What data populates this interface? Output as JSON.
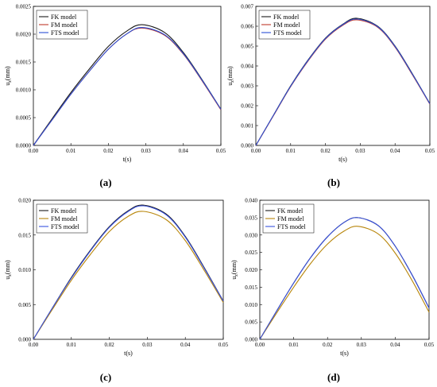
{
  "captions": [
    "(a)",
    "(b)",
    "(c)",
    "(d)"
  ],
  "chart_data": [
    {
      "type": "line",
      "xlabel": "t(s)",
      "ylabel": "u",
      "ylabel_sub": "z",
      "ylabel_unit": "(mm)",
      "xlim": [
        0,
        0.05
      ],
      "ylim": [
        0,
        0.0025
      ],
      "xticks": [
        "0.00",
        "0.01",
        "0.02",
        "0.03",
        "0.04",
        "0.05"
      ],
      "yticks": [
        "0.0000",
        "0.0005",
        "0.0010",
        "0.0015",
        "0.0020",
        "0.0025"
      ],
      "x": [
        0,
        0.005,
        0.01,
        0.015,
        0.02,
        0.025,
        0.029,
        0.035,
        0.04,
        0.045,
        0.05
      ],
      "series": [
        {
          "name": "FK model",
          "color": "#1a1a1a",
          "values": [
            0,
            0.00048,
            0.00095,
            0.00138,
            0.00178,
            0.00206,
            0.00217,
            0.00203,
            0.00167,
            0.00118,
            0.00065
          ]
        },
        {
          "name": "FM model",
          "color": "#c0392b",
          "values": [
            0,
            0.00046,
            0.00092,
            0.00134,
            0.00173,
            0.00201,
            0.00211,
            0.00198,
            0.00164,
            0.00116,
            0.00064
          ]
        },
        {
          "name": "FTS model",
          "color": "#2b4fd6",
          "values": [
            0,
            0.00046,
            0.00092,
            0.00134,
            0.00173,
            0.00201,
            0.00212,
            0.00199,
            0.00165,
            0.00117,
            0.00065
          ]
        }
      ]
    },
    {
      "type": "line",
      "xlabel": "t(s)",
      "ylabel": "u",
      "ylabel_sub": "z",
      "ylabel_unit": "(mm)",
      "xlim": [
        0,
        0.05
      ],
      "ylim": [
        0,
        0.007
      ],
      "xticks": [
        "0.00",
        "0.01",
        "0.02",
        "0.03",
        "0.04",
        "0.05"
      ],
      "yticks": [
        "0.000",
        "0.001",
        "0.002",
        "0.003",
        "0.004",
        "0.005",
        "0.006",
        "0.007"
      ],
      "x": [
        0,
        0.005,
        0.01,
        0.015,
        0.02,
        0.025,
        0.029,
        0.035,
        0.04,
        0.045,
        0.05
      ],
      "series": [
        {
          "name": "FK model",
          "color": "#1a1a1a",
          "values": [
            0,
            0.0015,
            0.003,
            0.0043,
            0.0054,
            0.0061,
            0.0064,
            0.006,
            0.005,
            0.0036,
            0.0021
          ]
        },
        {
          "name": "FM model",
          "color": "#c0392b",
          "values": [
            0,
            0.00148,
            0.00296,
            0.00425,
            0.00535,
            0.00605,
            0.00632,
            0.00595,
            0.00495,
            0.00355,
            0.00208
          ]
        },
        {
          "name": "FTS model",
          "color": "#2b4fd6",
          "values": [
            0,
            0.0015,
            0.00298,
            0.00428,
            0.00538,
            0.00608,
            0.00636,
            0.00598,
            0.00498,
            0.00358,
            0.0021
          ]
        }
      ]
    },
    {
      "type": "line",
      "xlabel": "t(s)",
      "ylabel": "u",
      "ylabel_sub": "z",
      "ylabel_unit": "(mm)",
      "xlim": [
        0,
        0.05
      ],
      "ylim": [
        0,
        0.02
      ],
      "xticks": [
        "0.00",
        "0.01",
        "0.02",
        "0.03",
        "0.04",
        "0.05"
      ],
      "yticks": [
        "0.000",
        "0.005",
        "0.010",
        "0.015",
        "0.020"
      ],
      "x": [
        0,
        0.005,
        0.01,
        0.015,
        0.02,
        0.025,
        0.029,
        0.035,
        0.04,
        0.045,
        0.05
      ],
      "series": [
        {
          "name": "FK model",
          "color": "#1a1a1a",
          "values": [
            0,
            0.0045,
            0.0089,
            0.0128,
            0.0162,
            0.0185,
            0.0193,
            0.018,
            0.0148,
            0.0103,
            0.0055
          ]
        },
        {
          "name": "FM model",
          "color": "#b8860b",
          "values": [
            0,
            0.0043,
            0.0085,
            0.0122,
            0.0155,
            0.0177,
            0.0184,
            0.0172,
            0.0142,
            0.0099,
            0.0053
          ]
        },
        {
          "name": "FTS model",
          "color": "#3a52e0",
          "values": [
            0,
            0.0045,
            0.0088,
            0.0127,
            0.0161,
            0.0184,
            0.0192,
            0.0179,
            0.0147,
            0.0102,
            0.0055
          ]
        }
      ]
    },
    {
      "type": "line",
      "xlabel": "t(s)",
      "ylabel": "u",
      "ylabel_sub": "z",
      "ylabel_unit": "(mm)",
      "xlim": [
        0,
        0.05
      ],
      "ylim": [
        0,
        0.04
      ],
      "xticks": [
        "0.00",
        "0.01",
        "0.02",
        "0.03",
        "0.04",
        "0.05"
      ],
      "yticks": [
        "0.000",
        "0.005",
        "0.010",
        "0.015",
        "0.020",
        "0.025",
        "0.030",
        "0.035",
        "0.040"
      ],
      "x": [
        0,
        0.005,
        0.01,
        0.015,
        0.02,
        0.025,
        0.029,
        0.035,
        0.04,
        0.045,
        0.05
      ],
      "series": [
        {
          "name": "FK model",
          "color": "#1a1a1a",
          "values": [
            0,
            0.0082,
            0.0162,
            0.0235,
            0.0295,
            0.0337,
            0.035,
            0.0327,
            0.0268,
            0.0185,
            0.009
          ]
        },
        {
          "name": "FM model",
          "color": "#b8860b",
          "values": [
            0,
            0.0076,
            0.015,
            0.0218,
            0.0274,
            0.0312,
            0.0325,
            0.0303,
            0.0248,
            0.0169,
            0.0078
          ]
        },
        {
          "name": "FTS model",
          "color": "#3a52e0",
          "values": [
            0,
            0.0082,
            0.0162,
            0.0235,
            0.0295,
            0.0337,
            0.035,
            0.0327,
            0.0268,
            0.0185,
            0.009
          ]
        }
      ]
    }
  ]
}
